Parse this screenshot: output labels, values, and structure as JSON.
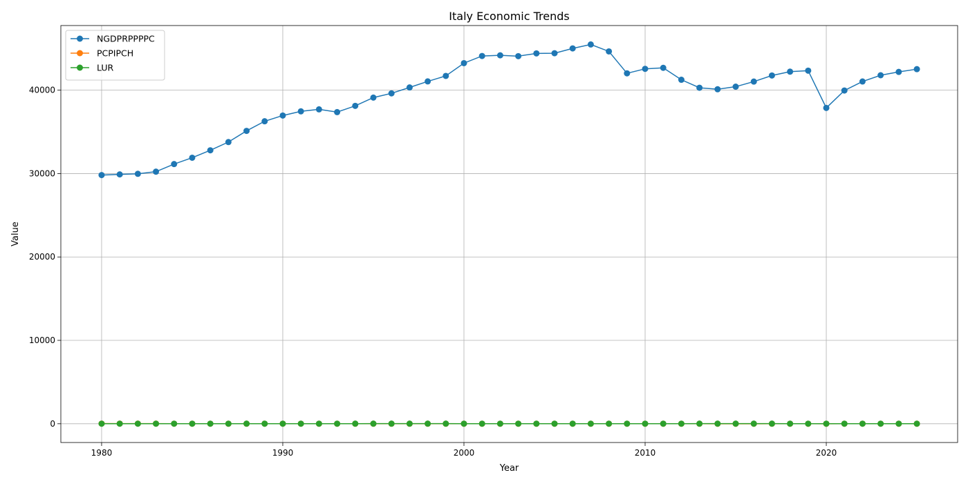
{
  "chart_data": {
    "type": "line",
    "title": "Italy Economic Trends",
    "xlabel": "Year",
    "ylabel": "Value",
    "xlim": [
      1977.75,
      1983.25
    ],
    "ylim": [
      -2250,
      47750
    ],
    "x_ticks": [
      1980,
      1990,
      2000,
      2010,
      2020
    ],
    "x_tick_labels": [
      "1980",
      "1990",
      "2000",
      "2010",
      "2020"
    ],
    "y_ticks": [
      0,
      10000,
      20000,
      30000,
      40000
    ],
    "y_tick_labels": [
      "0",
      "10000",
      "20000",
      "30000",
      "40000"
    ],
    "grid": true,
    "legend_position": "top-left",
    "x": [
      1980,
      1981,
      1982,
      1983,
      1984,
      1985,
      1986,
      1987,
      1988,
      1989,
      1990,
      1991,
      1992,
      1993,
      1994,
      1995,
      1996,
      1997,
      1998,
      1999,
      2000,
      2001,
      2002,
      2003,
      2004,
      2005,
      2006,
      2007,
      2008,
      2009,
      2010,
      2011,
      2012,
      2013,
      2014,
      2015,
      2016,
      2017,
      2018,
      2019,
      2020,
      2021,
      2022,
      2023,
      2024,
      2025
    ],
    "series": [
      {
        "name": "NGDPRPPPPC",
        "color": "#1f77b4",
        "values": [
          29820,
          29900,
          29970,
          30230,
          31140,
          31900,
          32790,
          33780,
          35120,
          36270,
          36960,
          37460,
          37700,
          37370,
          38120,
          39110,
          39620,
          40330,
          41050,
          41710,
          43240,
          44100,
          44180,
          44080,
          44410,
          44430,
          45010,
          45480,
          44650,
          42020,
          42560,
          42680,
          41250,
          40290,
          40110,
          40420,
          41030,
          41760,
          42220,
          42340,
          37870,
          39960,
          41040,
          41790,
          42190,
          42520
        ]
      },
      {
        "name": "PCPIPCH",
        "color": "#ff7f0e",
        "values": [
          21.3,
          17.8,
          16.5,
          14.6,
          10.8,
          9.2,
          5.8,
          4.7,
          5.1,
          6.3,
          6.5,
          6.3,
          5.3,
          4.6,
          4.1,
          5.2,
          4.0,
          1.9,
          2.0,
          1.7,
          2.6,
          2.3,
          2.6,
          2.8,
          2.3,
          2.2,
          2.2,
          2.0,
          3.5,
          0.8,
          1.6,
          2.9,
          3.3,
          1.2,
          0.2,
          0.1,
          -0.1,
          1.3,
          1.2,
          0.6,
          -0.1,
          1.9,
          8.7,
          5.9,
          1.1,
          1.7
        ]
      },
      {
        "name": "LUR",
        "color": "#2ca02c",
        "values": [
          7.6,
          7.8,
          8.4,
          8.8,
          9.4,
          9.6,
          10.5,
          10.9,
          11.0,
          10.9,
          10.1,
          10.2,
          8.9,
          10.1,
          11.1,
          11.6,
          11.7,
          11.8,
          11.8,
          11.4,
          10.6,
          9.1,
          8.6,
          8.5,
          8.0,
          7.7,
          6.8,
          6.1,
          6.7,
          7.7,
          8.4,
          8.4,
          10.7,
          12.1,
          12.7,
          11.9,
          11.7,
          11.3,
          10.6,
          10.0,
          9.3,
          9.5,
          8.1,
          7.7,
          6.5,
          6.0
        ]
      }
    ]
  }
}
